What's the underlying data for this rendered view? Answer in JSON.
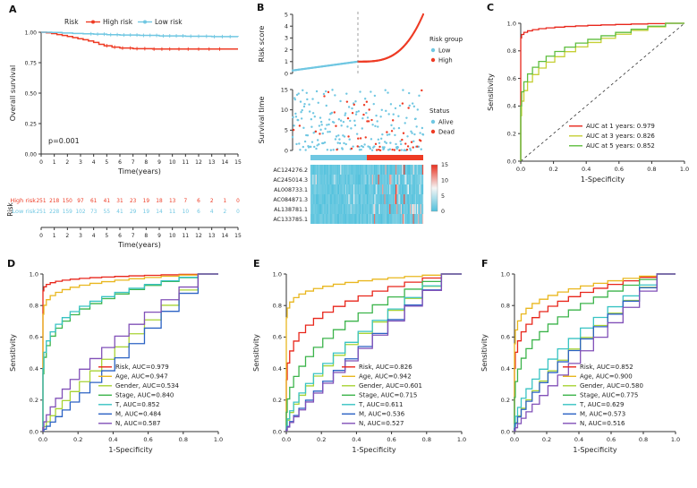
{
  "labels": {
    "A": "A",
    "B": "B",
    "C": "C",
    "D": "D",
    "E": "E",
    "F": "F"
  },
  "colors": {
    "high_risk": "#ee3b24",
    "low_risk": "#70c7e2",
    "axis": "#333333",
    "heat_low": "#4fc0dc",
    "heat_mid": "#f5f5f5",
    "heat_high": "#e8301f"
  },
  "chart_data": [
    {
      "id": "km",
      "panel": "A",
      "type": "line",
      "ylabel": "Overall survival",
      "xlabel": "Time(years)",
      "xlim": [
        0,
        15
      ],
      "ylim": [
        0,
        1
      ],
      "xticks": [
        0,
        1,
        2,
        3,
        4,
        5,
        6,
        7,
        8,
        9,
        10,
        11,
        12,
        13,
        14,
        15
      ],
      "yticks": [
        0,
        0.25,
        0.5,
        0.75,
        1
      ],
      "ytick_labels": [
        "0.00",
        "0.25",
        "0.50",
        "0.75",
        "1.00"
      ],
      "pvalue": "p=0.001",
      "legend_title": "Risk",
      "legend_position": "top",
      "series": [
        {
          "name": "High risk",
          "color": "#ee3b24",
          "x": [
            0,
            0.4,
            0.8,
            1.2,
            1.6,
            2.0,
            2.4,
            2.8,
            3.2,
            3.6,
            4.0,
            4.4,
            4.8,
            5.4,
            6.0,
            7.0,
            8.5,
            15
          ],
          "y": [
            1,
            0.995,
            0.989,
            0.981,
            0.973,
            0.965,
            0.956,
            0.947,
            0.938,
            0.928,
            0.916,
            0.901,
            0.889,
            0.878,
            0.87,
            0.865,
            0.862,
            0.862
          ],
          "censor_x": [
            5.0,
            5.6,
            6.2,
            6.8,
            7.3,
            7.9,
            8.6,
            9.2,
            9.8,
            10.5,
            11.2,
            12.0,
            12.8,
            13.6
          ]
        },
        {
          "name": "Low risk",
          "color": "#70c7e2",
          "x": [
            0,
            0.8,
            1.6,
            2.4,
            3.2,
            4.0,
            5.0,
            6.0,
            7.5,
            9.0,
            11.0,
            13.0,
            15.0
          ],
          "y": [
            1,
            0.998,
            0.994,
            0.99,
            0.987,
            0.984,
            0.98,
            0.977,
            0.974,
            0.97,
            0.967,
            0.964,
            0.962
          ],
          "censor_x": [
            3.8,
            4.3,
            4.8,
            5.3,
            5.8,
            6.3,
            6.8,
            7.3,
            7.8,
            8.3,
            8.8,
            9.3,
            9.8,
            10.3,
            10.8,
            11.4,
            12.0,
            12.6,
            13.2,
            13.8,
            14.4
          ]
        }
      ]
    },
    {
      "id": "risk-table",
      "panel": "A",
      "type": "table",
      "ylabel": "Risk",
      "xlabel": "Time(years)",
      "xticks": [
        0,
        1,
        2,
        3,
        4,
        5,
        6,
        7,
        8,
        9,
        10,
        11,
        12,
        13,
        14,
        15
      ],
      "rows": [
        {
          "label": "High risk",
          "color": "#ee3b24",
          "values": [
            251,
            218,
            150,
            97,
            61,
            41,
            31,
            23,
            19,
            18,
            13,
            7,
            6,
            2,
            1,
            0
          ]
        },
        {
          "label": "Low risk",
          "color": "#70c7e2",
          "values": [
            251,
            228,
            159,
            102,
            73,
            55,
            41,
            29,
            19,
            14,
            11,
            10,
            6,
            4,
            2,
            0
          ]
        }
      ]
    },
    {
      "id": "risk-score",
      "panel": "B",
      "type": "scatter",
      "ylabel": "Risk score",
      "ylim": [
        0,
        5
      ],
      "yticks": [
        0,
        1,
        2,
        3,
        4,
        5
      ],
      "n": 260,
      "median_line": true,
      "legend_title": "Risk group",
      "legend": [
        {
          "label": "Low",
          "color": "#70c7e2"
        },
        {
          "label": "High",
          "color": "#ee3b24"
        }
      ]
    },
    {
      "id": "survival-time",
      "panel": "B",
      "type": "scatter",
      "ylabel": "Survival time",
      "ylim": [
        0,
        15
      ],
      "yticks": [
        0,
        5,
        10,
        15
      ],
      "n": 260,
      "legend_title": "Status",
      "legend": [
        {
          "label": "Alive",
          "color": "#70c7e2"
        },
        {
          "label": "Dead",
          "color": "#ee3b24"
        }
      ]
    },
    {
      "id": "heatmap",
      "panel": "B",
      "type": "heatmap",
      "genes": [
        "AC124276.2",
        "AC245014.3",
        "AL008733.1",
        "AC084871.3",
        "AL138781.1",
        "AC133785.1"
      ],
      "cols": 110,
      "group_bar": {
        "left_color": "#70c7e2",
        "right_color": "#ee3b24"
      },
      "scale": {
        "min": 0,
        "max": 15,
        "ticks": [
          15,
          10,
          5,
          0
        ]
      }
    },
    {
      "id": "roc-years",
      "panel": "C",
      "type": "roc",
      "xlabel": "1-Specificity",
      "ylabel": "Sensitivity",
      "ticks": [
        0,
        0.2,
        0.4,
        0.6,
        0.8,
        1
      ],
      "diagonal": true,
      "series": [
        {
          "label": "AUC at 1 years: 0.979",
          "auc": 0.979,
          "color": "#e8261b"
        },
        {
          "label": "AUC at 3 years: 0.826",
          "auc": 0.826,
          "color": "#c6cf35"
        },
        {
          "label": "AUC at 5 years: 0.852",
          "auc": 0.852,
          "color": "#5fbe3e"
        }
      ]
    },
    {
      "id": "roc-d",
      "panel": "D",
      "type": "roc",
      "xlabel": "1-Specificity",
      "ylabel": "Sensitivity",
      "ticks": [
        0,
        0.2,
        0.4,
        0.6,
        0.8,
        1
      ],
      "diagonal": false,
      "series": [
        {
          "label": "Risk, AUC=0.979",
          "auc": 0.979,
          "color": "#e8261b"
        },
        {
          "label": "Age, AUC=0.947",
          "auc": 0.947,
          "color": "#e9b71f"
        },
        {
          "label": "Gender, AUC=0.534",
          "auc": 0.534,
          "color": "#a8d334"
        },
        {
          "label": "Stage, AUC=0.840",
          "auc": 0.84,
          "color": "#3cb44b"
        },
        {
          "label": "T, AUC=0.852",
          "auc": 0.852,
          "color": "#38c3c3"
        },
        {
          "label": "M, AUC=0.484",
          "auc": 0.484,
          "color": "#2b62c4"
        },
        {
          "label": "N, AUC=0.587",
          "auc": 0.587,
          "color": "#8150b8"
        }
      ]
    },
    {
      "id": "roc-e",
      "panel": "E",
      "type": "roc",
      "xlabel": "1-Specificity",
      "ylabel": "Sensitivity",
      "ticks": [
        0,
        0.2,
        0.4,
        0.6,
        0.8,
        1
      ],
      "diagonal": false,
      "series": [
        {
          "label": "Risk, AUC=0.826",
          "auc": 0.826,
          "color": "#e8261b"
        },
        {
          "label": "Age, AUC=0.942",
          "auc": 0.942,
          "color": "#e9b71f"
        },
        {
          "label": "Gender, AUC=0.601",
          "auc": 0.601,
          "color": "#a8d334"
        },
        {
          "label": "Stage, AUC=0.715",
          "auc": 0.715,
          "color": "#3cb44b"
        },
        {
          "label": "T, AUC=0.611",
          "auc": 0.611,
          "color": "#38c3c3"
        },
        {
          "label": "M, AUC=0.536",
          "auc": 0.536,
          "color": "#2b62c4"
        },
        {
          "label": "N, AUC=0.527",
          "auc": 0.527,
          "color": "#8150b8"
        }
      ]
    },
    {
      "id": "roc-f",
      "panel": "F",
      "type": "roc",
      "xlabel": "1-Specificity",
      "ylabel": "Sensitivity",
      "ticks": [
        0,
        0.2,
        0.4,
        0.6,
        0.8,
        1
      ],
      "diagonal": false,
      "series": [
        {
          "label": "Risk, AUC=0.852",
          "auc": 0.852,
          "color": "#e8261b"
        },
        {
          "label": "Age, AUC=0.900",
          "auc": 0.9,
          "color": "#e9b71f"
        },
        {
          "label": "Gender, AUC=0.580",
          "auc": 0.58,
          "color": "#a8d334"
        },
        {
          "label": "Stage, AUC=0.775",
          "auc": 0.775,
          "color": "#3cb44b"
        },
        {
          "label": "T, AUC=0.629",
          "auc": 0.629,
          "color": "#38c3c3"
        },
        {
          "label": "M, AUC=0.573",
          "auc": 0.573,
          "color": "#2b62c4"
        },
        {
          "label": "N, AUC=0.516",
          "auc": 0.516,
          "color": "#8150b8"
        }
      ]
    }
  ]
}
